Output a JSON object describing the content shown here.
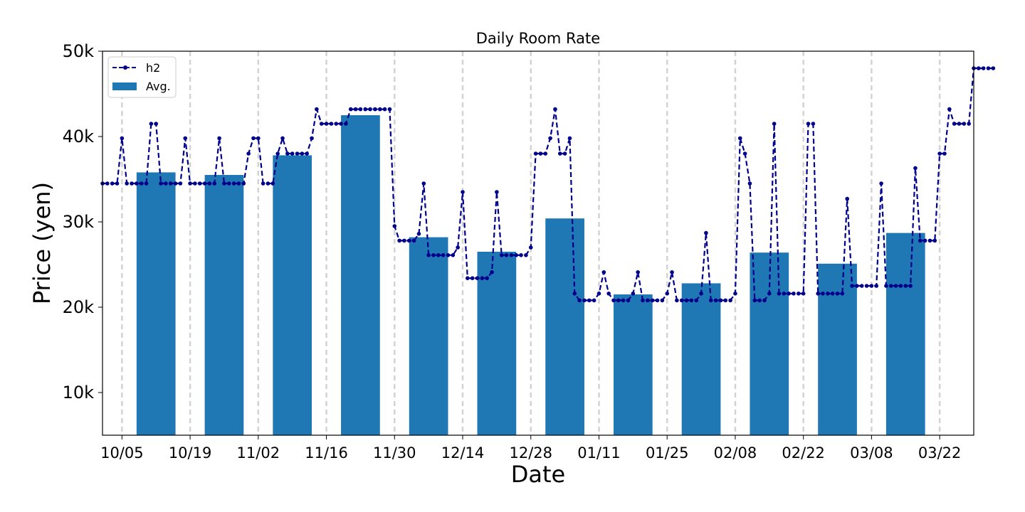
{
  "chart_data": {
    "type": "bar+line",
    "title": "Daily Room Rate",
    "xlabel": "Date",
    "ylabel": "Price (yen)",
    "ylim": [
      5000,
      50000
    ],
    "y_ticks": [
      10000,
      20000,
      30000,
      40000,
      50000
    ],
    "y_tick_labels": [
      "10k",
      "20k",
      "30k",
      "40k",
      "50k"
    ],
    "x_tick_labels": [
      "10/05",
      "10/19",
      "11/02",
      "11/16",
      "11/30",
      "12/14",
      "12/28",
      "01/11",
      "01/25",
      "02/08",
      "02/22",
      "03/08",
      "03/22"
    ],
    "x_tick_day_index": [
      4,
      18,
      32,
      46,
      60,
      74,
      88,
      102,
      116,
      130,
      144,
      158,
      172
    ],
    "x_range_days": [
      0,
      179
    ],
    "vertical_gridlines": "dashed at x ticks",
    "legend": {
      "placement": "upper-left",
      "entries": [
        "h2",
        "Avg."
      ]
    },
    "series": [
      {
        "name": "h2",
        "kind": "line",
        "style": "dashed with circle markers",
        "color": "#00008b",
        "values": [
          34500,
          34500,
          34500,
          34500,
          39800,
          34500,
          34500,
          34500,
          34500,
          34500,
          41500,
          41500,
          34500,
          34500,
          34500,
          34500,
          34500,
          39800,
          34500,
          34500,
          34500,
          34500,
          34500,
          34500,
          39800,
          34500,
          34500,
          34500,
          34500,
          34500,
          38000,
          39800,
          39800,
          34500,
          34500,
          34500,
          38000,
          39800,
          38000,
          38000,
          38000,
          38000,
          38000,
          39800,
          43200,
          41500,
          41500,
          41500,
          41500,
          41500,
          41500,
          43200,
          43200,
          43200,
          43200,
          43200,
          43200,
          43200,
          43200,
          43200,
          29500,
          27800,
          27800,
          27800,
          27800,
          28600,
          34500,
          26100,
          26100,
          26100,
          26100,
          26100,
          26100,
          27000,
          33500,
          23400,
          23400,
          23400,
          23400,
          23400,
          24100,
          33500,
          26100,
          26100,
          26100,
          26100,
          26100,
          26100,
          27000,
          38000,
          38000,
          38000,
          39800,
          43200,
          38000,
          38000,
          39800,
          21600,
          20800,
          20800,
          20800,
          20800,
          21600,
          24100,
          21600,
          20800,
          20800,
          20800,
          20800,
          21600,
          24100,
          20800,
          20800,
          20800,
          20800,
          20800,
          21600,
          24100,
          20800,
          20800,
          20800,
          20800,
          20800,
          21600,
          28700,
          20800,
          20800,
          20800,
          20800,
          20800,
          21600,
          39800,
          38000,
          34500,
          20800,
          20800,
          20800,
          21600,
          41500,
          21600,
          21600,
          21600,
          21600,
          21600,
          21600,
          41500,
          41500,
          21600,
          21600,
          21600,
          21600,
          21600,
          21600,
          32700,
          22500,
          22500,
          22500,
          22500,
          22500,
          22500,
          34500,
          22500,
          22500,
          22500,
          22500,
          22500,
          22500,
          36300,
          27800,
          27800,
          27800,
          27800,
          38000,
          38000,
          43200,
          41500,
          41500,
          41500,
          41500,
          48000,
          48000,
          48000,
          48000,
          48000
        ]
      },
      {
        "name": "Avg.",
        "kind": "bar",
        "color": "#1f77b4",
        "categories": [
          "10/05",
          "10/19",
          "11/02",
          "11/16",
          "11/30",
          "12/14",
          "12/28",
          "01/11",
          "01/25",
          "02/08",
          "02/22",
          "03/08"
        ],
        "values": [
          35800,
          35500,
          37800,
          42500,
          28200,
          26500,
          30400,
          21500,
          22800,
          26400,
          25100,
          28700
        ]
      }
    ]
  }
}
